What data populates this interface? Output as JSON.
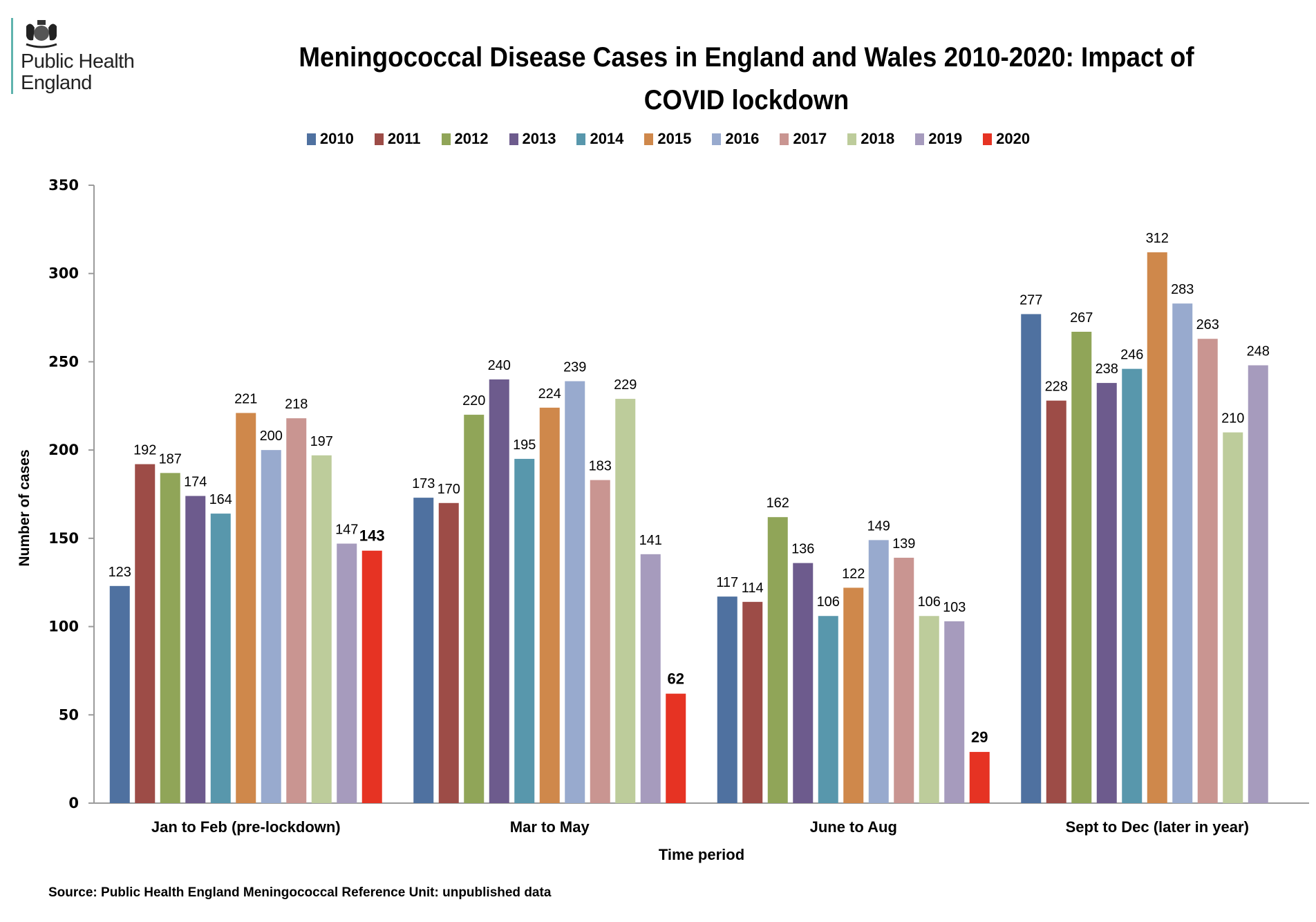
{
  "logo": {
    "org_line1": "Public Health",
    "org_line2": "England",
    "accent": "#5fb3ad"
  },
  "source_note": "Source: Public Health England Meningococcal Reference Unit: unpublished data",
  "chart_data": {
    "type": "bar",
    "title": "Meningococcal Disease Cases in England and Wales 2010-2020: Impact of COVID lockdown",
    "title_line1": "Meningococcal Disease Cases in England and Wales 2010-2020: Impact of",
    "title_line2": "COVID lockdown",
    "xlabel": "Time period",
    "ylabel": "Number of cases",
    "ylim": [
      0,
      350
    ],
    "yticks": [
      0,
      50,
      100,
      150,
      200,
      250,
      300,
      350
    ],
    "grid": false,
    "legend_position": "top-center",
    "categories": [
      "Jan to Feb (pre-lockdown)",
      "Mar to May",
      "June to Aug",
      "Sept to Dec (later in year)"
    ],
    "series": [
      {
        "name": "2010",
        "color": "#4f71a0",
        "values": [
          123,
          173,
          117,
          277
        ]
      },
      {
        "name": "2011",
        "color": "#9d4c47",
        "values": [
          192,
          170,
          114,
          228
        ]
      },
      {
        "name": "2012",
        "color": "#90a558",
        "values": [
          187,
          220,
          162,
          267
        ]
      },
      {
        "name": "2013",
        "color": "#6d5b8d",
        "values": [
          174,
          240,
          136,
          238
        ]
      },
      {
        "name": "2014",
        "color": "#5897ac",
        "values": [
          164,
          195,
          106,
          246
        ]
      },
      {
        "name": "2015",
        "color": "#cf884b",
        "values": [
          221,
          224,
          122,
          312
        ]
      },
      {
        "name": "2016",
        "color": "#98aace",
        "values": [
          200,
          239,
          149,
          283
        ]
      },
      {
        "name": "2017",
        "color": "#c99591",
        "values": [
          218,
          183,
          139,
          263
        ]
      },
      {
        "name": "2018",
        "color": "#bdcc9b",
        "values": [
          197,
          229,
          106,
          210
        ]
      },
      {
        "name": "2019",
        "color": "#a69bbd",
        "values": [
          147,
          141,
          103,
          248
        ]
      },
      {
        "name": "2020",
        "color": "#e63323",
        "values": [
          143,
          62,
          29,
          null
        ],
        "bold_labels": true
      }
    ]
  }
}
